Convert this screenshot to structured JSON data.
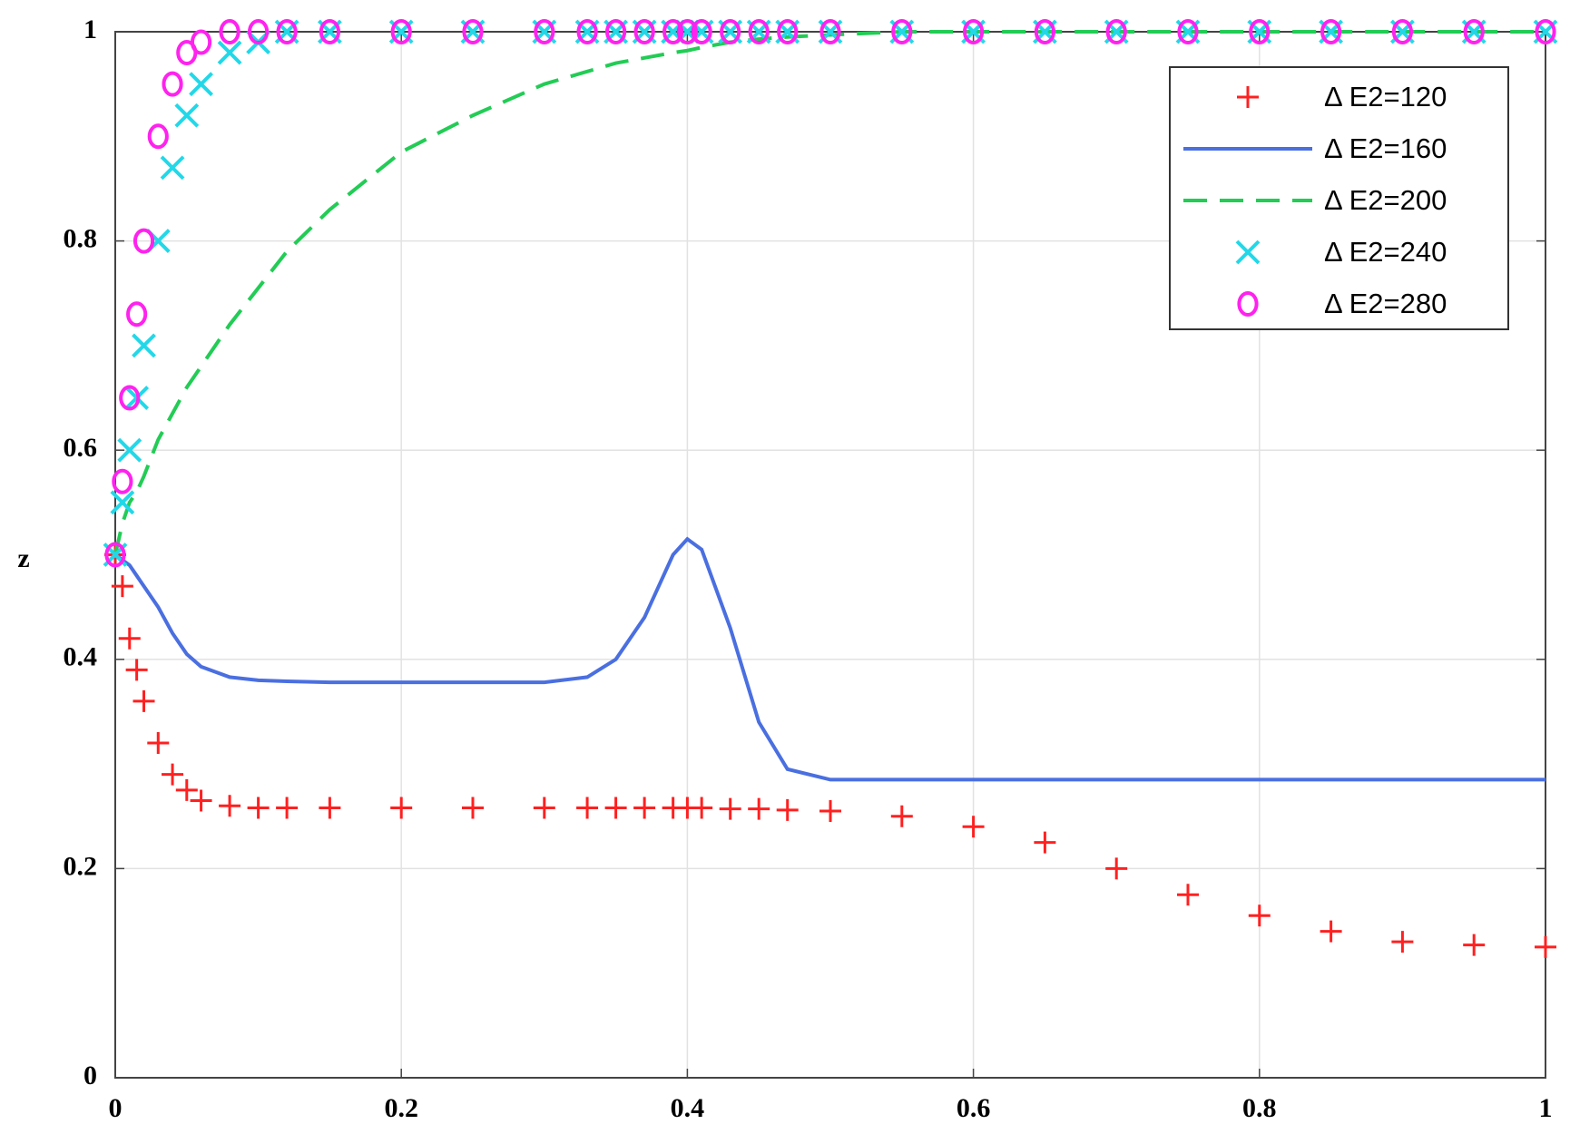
{
  "chart_data": {
    "type": "line",
    "y_label": "z",
    "x": [
      0,
      0.005,
      0.01,
      0.015,
      0.02,
      0.03,
      0.04,
      0.05,
      0.06,
      0.08,
      0.1,
      0.12,
      0.15,
      0.2,
      0.25,
      0.3,
      0.33,
      0.35,
      0.37,
      0.39,
      0.4,
      0.41,
      0.43,
      0.45,
      0.47,
      0.5,
      0.55,
      0.6,
      0.65,
      0.7,
      0.75,
      0.8,
      0.85,
      0.9,
      0.95,
      1
    ],
    "series": [
      {
        "name": "Δ E2=120",
        "color": "#ff2020",
        "marker": "plus",
        "values": [
          0.5,
          0.47,
          0.42,
          0.39,
          0.36,
          0.32,
          0.29,
          0.275,
          0.265,
          0.26,
          0.258,
          0.258,
          0.258,
          0.258,
          0.258,
          0.258,
          0.258,
          0.258,
          0.258,
          0.258,
          0.258,
          0.258,
          0.257,
          0.257,
          0.256,
          0.255,
          0.25,
          0.24,
          0.225,
          0.2,
          0.175,
          0.155,
          0.14,
          0.13,
          0.127,
          0.125
        ]
      },
      {
        "name": "Δ E2=160",
        "color": "#4a6fe0",
        "dash": "solid",
        "values": [
          0.5,
          0.495,
          0.49,
          0.48,
          0.47,
          0.45,
          0.425,
          0.405,
          0.393,
          0.383,
          0.38,
          0.379,
          0.378,
          0.378,
          0.378,
          0.378,
          0.383,
          0.4,
          0.44,
          0.5,
          0.515,
          0.505,
          0.43,
          0.34,
          0.295,
          0.285,
          0.285,
          0.285,
          0.285,
          0.285,
          0.285,
          0.285,
          0.285,
          0.285,
          0.285,
          0.285
        ]
      },
      {
        "name": "Δ E2=200",
        "color": "#22cc55",
        "dash": "dashed",
        "values": [
          0.5,
          0.53,
          0.55,
          0.56,
          0.575,
          0.61,
          0.635,
          0.66,
          0.68,
          0.72,
          0.755,
          0.79,
          0.83,
          0.885,
          0.92,
          0.95,
          0.962,
          0.97,
          0.975,
          0.98,
          0.982,
          0.985,
          0.99,
          0.993,
          0.995,
          0.997,
          1,
          1,
          1,
          1,
          1,
          1,
          1,
          1,
          1,
          1
        ]
      },
      {
        "name": "Δ E2=240",
        "color": "#22d8e8",
        "marker": "cross",
        "values": [
          0.5,
          0.55,
          0.6,
          0.65,
          0.7,
          0.8,
          0.87,
          0.92,
          0.95,
          0.98,
          0.99,
          1,
          1,
          1,
          1,
          1,
          1,
          1,
          1,
          1,
          1,
          1,
          1,
          1,
          1,
          1,
          1,
          1,
          1,
          1,
          1,
          1,
          1,
          1,
          1,
          1
        ]
      },
      {
        "name": "Δ E2=280",
        "color": "#ff22ee",
        "marker": "circle",
        "values": [
          0.5,
          0.57,
          0.65,
          0.73,
          0.8,
          0.9,
          0.95,
          0.98,
          0.99,
          1,
          1,
          1,
          1,
          1,
          1,
          1,
          1,
          1,
          1,
          1,
          1,
          1,
          1,
          1,
          1,
          1,
          1,
          1,
          1,
          1,
          1,
          1,
          1,
          1,
          1,
          1
        ]
      }
    ],
    "xlim": [
      0,
      1
    ],
    "ylim": [
      0,
      1
    ],
    "xticks": [
      0,
      0.2,
      0.4,
      0.6,
      0.8,
      1
    ],
    "yticks": [
      0,
      0.2,
      0.4,
      0.6,
      0.8,
      1
    ],
    "grid": true,
    "legend": "upper right"
  }
}
